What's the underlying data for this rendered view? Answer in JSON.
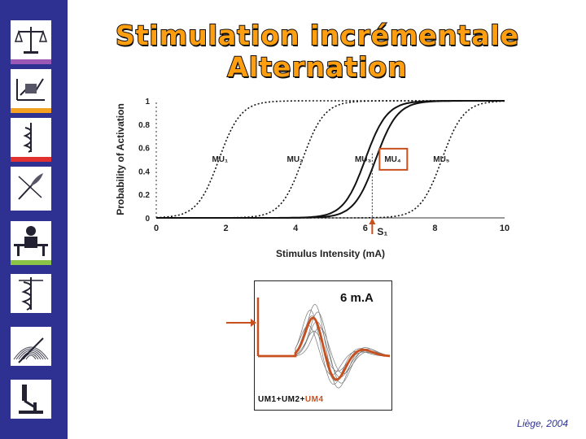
{
  "title": {
    "line1": "Stimulation incrémentale",
    "line2": "Alternation"
  },
  "sidebar": {
    "icons": [
      {
        "name": "scales-icon",
        "bar": "#9b59b6"
      },
      {
        "name": "chart-icon",
        "bar": "#f4a020"
      },
      {
        "name": "caduceus-icon",
        "bar": "#e03030"
      },
      {
        "name": "quill-icon",
        "bar": "#ffffff"
      },
      {
        "name": "person-desk-icon",
        "bar": "#8bc34a"
      },
      {
        "name": "caduceus-snakes-icon",
        "bar": "#2e3192"
      },
      {
        "name": "hands-icon",
        "bar": "#2e3192"
      },
      {
        "name": "microscope-icon",
        "bar": "#2e3192"
      }
    ]
  },
  "chart_data": {
    "type": "line",
    "xlabel": "Stimulus Intensity (mA)",
    "ylabel": "Probability of Activation",
    "xlim": [
      0,
      10
    ],
    "ylim": [
      0,
      1
    ],
    "xticks": [
      "0",
      "2",
      "4",
      "6",
      "8",
      "10"
    ],
    "yticks": [
      "0",
      "0.2",
      "0.4",
      "0.6",
      "0.8",
      "1"
    ],
    "series": [
      {
        "name": "MU1",
        "midpoint": 1.8,
        "style": "dotted"
      },
      {
        "name": "MU2",
        "midpoint": 4.2,
        "style": "dotted"
      },
      {
        "name": "MU3",
        "midpoint": 6.0,
        "style": "solid"
      },
      {
        "name": "MU4",
        "midpoint": 6.3,
        "style": "solid"
      },
      {
        "name": "MU5",
        "midpoint": 8.2,
        "style": "dotted"
      }
    ],
    "labels": [
      {
        "text": "MU₁",
        "x": 1.6,
        "y": 0.48
      },
      {
        "text": "MU₂",
        "x": 3.75,
        "y": 0.48
      },
      {
        "text": "MU₃",
        "x": 5.7,
        "y": 0.48
      },
      {
        "text": "MU₄",
        "x": 6.55,
        "y": 0.48
      },
      {
        "text": "MU₅",
        "x": 7.95,
        "y": 0.48
      }
    ],
    "highlight": "MU4",
    "marker": {
      "label": "S₁",
      "x": 6.2
    },
    "highlight_color": "#c8501e"
  },
  "inset": {
    "label": "6 m.A",
    "caption_prefix": "UM1+UM2+",
    "caption_highlight": "UM4"
  },
  "footer": {
    "text": "Liège, 2004"
  }
}
